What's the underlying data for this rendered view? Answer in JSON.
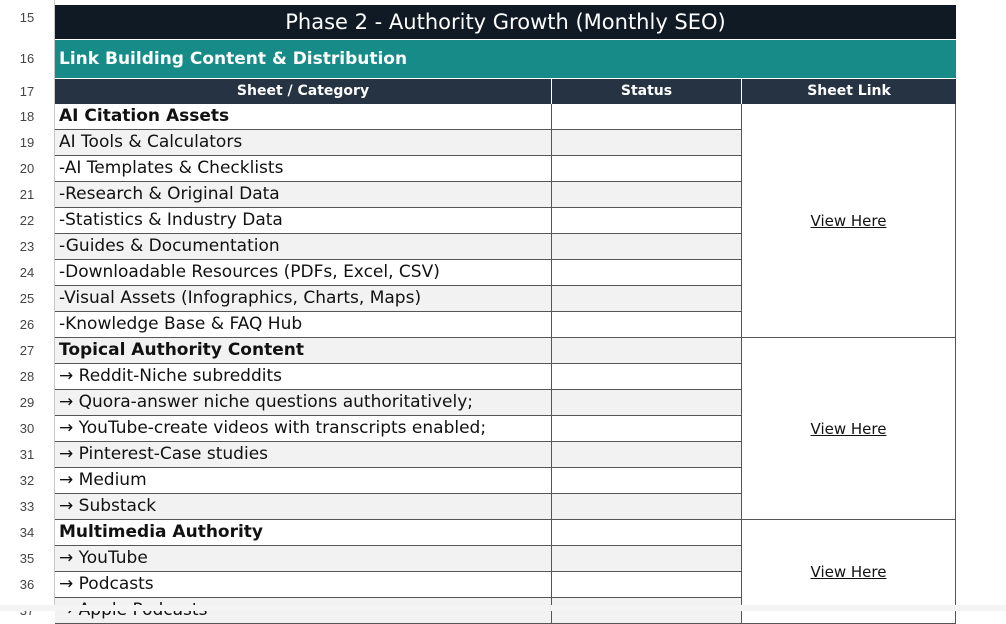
{
  "row_numbers": [
    "15",
    "16",
    "17",
    "18",
    "19",
    "20",
    "21",
    "22",
    "23",
    "24",
    "25",
    "26",
    "27",
    "28",
    "29",
    "30",
    "31",
    "32",
    "33",
    "34",
    "35",
    "36",
    "37"
  ],
  "title": "Phase 2 - Authority Growth (Monthly SEO)",
  "section_title": "Link Building Content & Distribution",
  "columns": {
    "category": "Sheet / Category",
    "status": "Status",
    "link": "Sheet Link"
  },
  "rows": [
    {
      "label": "AI Citation Assets",
      "bold": true
    },
    {
      "label": "AI Tools & Calculators",
      "bold": false
    },
    {
      "label": "-AI Templates & Checklists",
      "bold": false
    },
    {
      "label": "-Research & Original Data",
      "bold": false
    },
    {
      "label": "-Statistics & Industry Data",
      "bold": false
    },
    {
      "label": "-Guides & Documentation",
      "bold": false
    },
    {
      "label": "-Downloadable Resources (PDFs, Excel, CSV)",
      "bold": false
    },
    {
      "label": "-Visual Assets (Infographics, Charts, Maps)",
      "bold": false
    },
    {
      "label": "-Knowledge Base & FAQ Hub",
      "bold": false
    },
    {
      "label": "Topical Authority Content",
      "bold": true
    },
    {
      "label": "→ Reddit-Niche subreddits",
      "bold": false
    },
    {
      "label": "→ Quora-answer niche questions authoritatively;",
      "bold": false
    },
    {
      "label": "→ YouTube-create videos with transcripts enabled;",
      "bold": false
    },
    {
      "label": "→ Pinterest-Case studies",
      "bold": false
    },
    {
      "label": "→ Medium",
      "bold": false
    },
    {
      "label": "→ Substack",
      "bold": false
    },
    {
      "label": "Multimedia Authority",
      "bold": true
    },
    {
      "label": "→ YouTube",
      "bold": false
    },
    {
      "label": "→ Podcasts",
      "bold": false
    },
    {
      "label": "→ Apple Podcasts",
      "bold": false
    }
  ],
  "links": [
    {
      "label": "View Here",
      "start": 0,
      "span": 9
    },
    {
      "label": "View Here",
      "start": 9,
      "span": 7
    },
    {
      "label": "View Here",
      "start": 16,
      "span": 4
    }
  ]
}
